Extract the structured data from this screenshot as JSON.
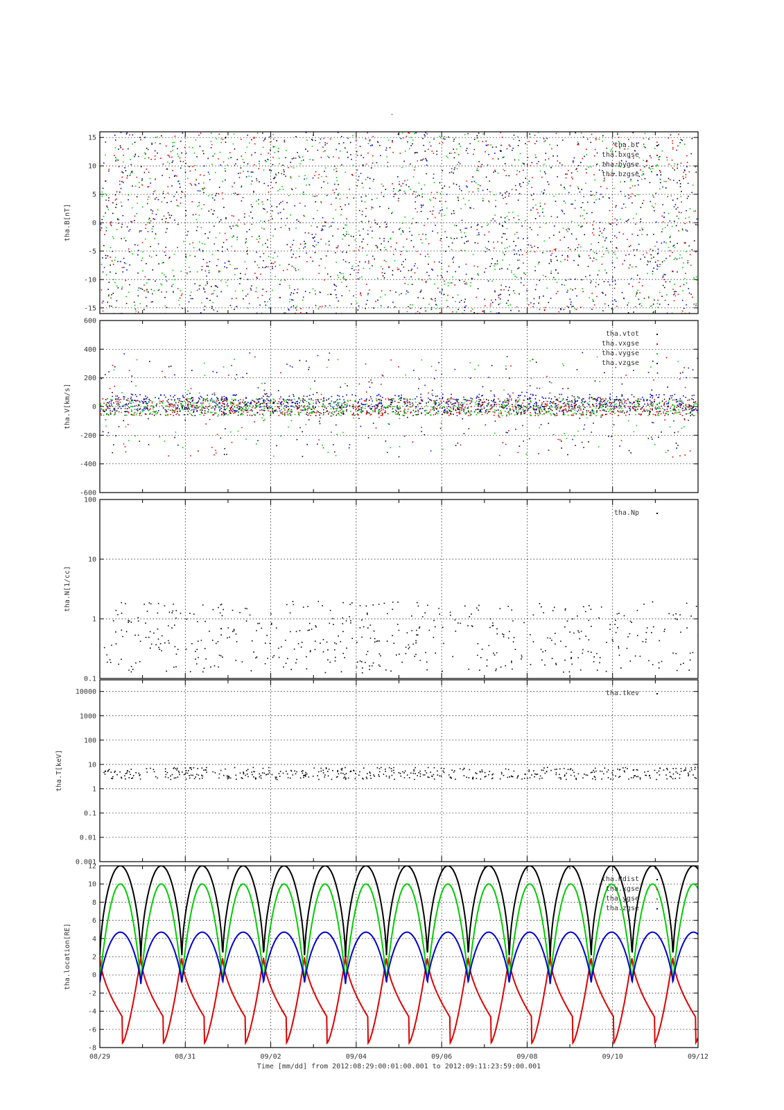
{
  "title": "-",
  "footer": {
    "xlabel": "Time [mm/dd]  from 2012:08:29:00:01:00.001  to  2012:09:11:23:59:00.001"
  },
  "x_ticks": [
    "08/29",
    "08/31",
    "09/02",
    "09/04",
    "09/06",
    "09/08",
    "09/10",
    "09/12"
  ],
  "colors": {
    "black": "#000000",
    "red": "#dd0000",
    "green": "#00cc00",
    "blue": "#0000cc"
  },
  "chart_data": [
    {
      "type": "scatter",
      "ylabel": "tha.B[nT]",
      "xlim_days": [
        0,
        14
      ],
      "ylim": [
        -16,
        16
      ],
      "yscale": "linear",
      "yticks": [
        "15",
        "10",
        "5",
        "0",
        "-5",
        "-10",
        "-15"
      ],
      "ytick_values": [
        15,
        10,
        5,
        0,
        -5,
        -10,
        -15
      ],
      "grid": true,
      "legend_position": "top-right",
      "series": [
        {
          "name": "tha.bt",
          "color": "black"
        },
        {
          "name": "tha.bxgse",
          "color": "red"
        },
        {
          "name": "tha.bygse",
          "color": "green"
        },
        {
          "name": "tha.bzgse",
          "color": "blue"
        }
      ],
      "legend_labels": [
        "tha.bt",
        "tha.bxgse",
        "tha.bygse",
        "tha.bzgse"
      ]
    },
    {
      "type": "scatter",
      "ylabel": "tha.V[km/s]",
      "xlim_days": [
        0,
        14
      ],
      "ylim": [
        -600,
        600
      ],
      "yscale": "linear",
      "yticks": [
        "600",
        "400",
        "200",
        "0",
        "-200",
        "-400",
        "-600"
      ],
      "ytick_values": [
        600,
        400,
        200,
        0,
        -200,
        -400,
        -600
      ],
      "grid": true,
      "legend_position": "top-right",
      "series": [
        {
          "name": "tha.vtot",
          "color": "black"
        },
        {
          "name": "tha.vxgse",
          "color": "red"
        },
        {
          "name": "tha.vygse",
          "color": "green"
        },
        {
          "name": "tha.vzgse",
          "color": "blue"
        }
      ],
      "legend_labels": [
        "tha.vtot",
        "tha.vxgse",
        "tha.vygse",
        "tha.vzgse"
      ]
    },
    {
      "type": "scatter",
      "ylabel": "tha.N[1/cc]",
      "xlim_days": [
        0,
        14
      ],
      "ylim": [
        0.1,
        100
      ],
      "yscale": "log",
      "yticks": [
        "100",
        "10",
        "1",
        "0.1"
      ],
      "ytick_values": [
        100,
        10,
        1,
        0.1
      ],
      "grid": true,
      "legend_position": "top-right",
      "series": [
        {
          "name": "tha.Np",
          "color": "black"
        }
      ],
      "legend_labels": [
        "tha.Np"
      ]
    },
    {
      "type": "scatter",
      "ylabel": "tha.T[keV]",
      "xlim_days": [
        0,
        14
      ],
      "ylim": [
        0.001,
        30000
      ],
      "yscale": "log",
      "yticks": [
        "10000",
        "1000",
        "100",
        "10",
        "1",
        "0.1",
        "0.01",
        "0.001"
      ],
      "ytick_values": [
        10000,
        1000,
        100,
        10,
        1,
        0.1,
        0.01,
        0.001
      ],
      "grid": true,
      "legend_position": "top-right",
      "series": [
        {
          "name": "tha.tkev",
          "color": "black"
        }
      ],
      "legend_labels": [
        "tha.tkev"
      ]
    },
    {
      "type": "line",
      "ylabel": "tha.location[RE]",
      "xlim_days": [
        0,
        14
      ],
      "ylim": [
        -8,
        12
      ],
      "yscale": "linear",
      "yticks": [
        "12",
        "10",
        "8",
        "6",
        "4",
        "2",
        "0",
        "-2",
        "-4",
        "-6",
        "-8"
      ],
      "ytick_values": [
        12,
        10,
        8,
        6,
        4,
        2,
        0,
        -2,
        -4,
        -6,
        -8
      ],
      "grid": true,
      "legend_position": "top-right",
      "orbit_period_days": 0.958,
      "orbit_perigee_days": 0.96,
      "series": [
        {
          "name": "tha.Rdist",
          "color": "black",
          "apogee": 12,
          "perigee": 1.5
        },
        {
          "name": "tha.xgse",
          "color": "red",
          "max": 2,
          "min": -7.5
        },
        {
          "name": "tha.ygse",
          "color": "green",
          "max": 10,
          "min": -1
        },
        {
          "name": "tha.zgse",
          "color": "blue",
          "max": 4.7,
          "min": -1
        }
      ],
      "legend_labels": [
        "tha.Rdist",
        "tha.xgse",
        "tha.ygse",
        "tha.zgse"
      ]
    }
  ]
}
